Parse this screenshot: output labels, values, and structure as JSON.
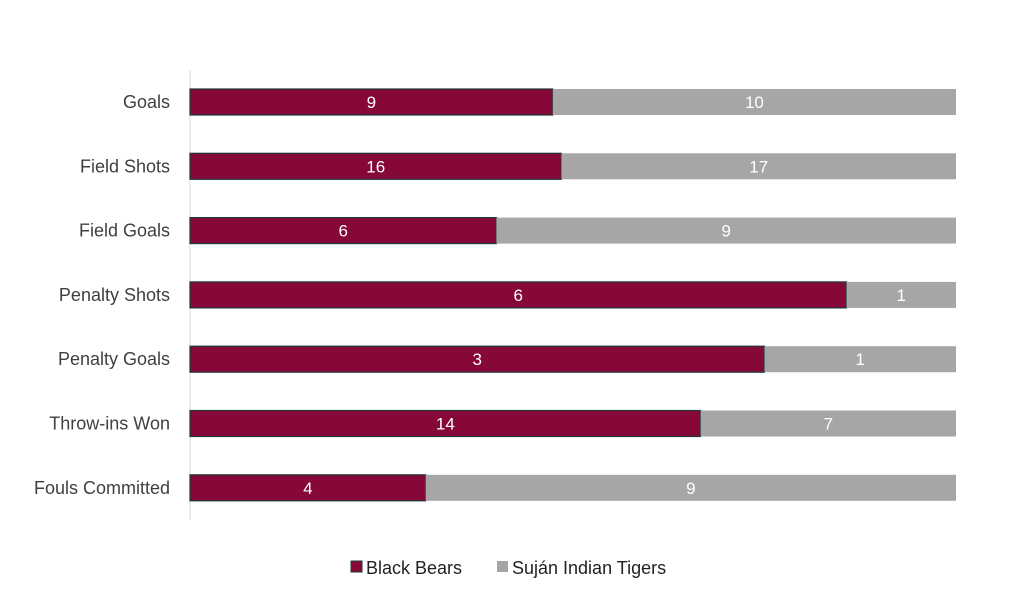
{
  "chart_data": {
    "type": "bar",
    "orientation": "horizontal",
    "stacked": "percent",
    "categories": [
      "Goals",
      "Field Shots",
      "Field Goals",
      "Penalty Shots",
      "Penalty Goals",
      "Throw-ins Won",
      "Fouls Committed"
    ],
    "series": [
      {
        "name": "Black Bears",
        "color": "#850838",
        "values": [
          9,
          16,
          6,
          6,
          3,
          14,
          4
        ]
      },
      {
        "name": "Suján Indian Tigers",
        "color": "#a6a6a6",
        "values": [
          10,
          17,
          9,
          1,
          1,
          7,
          9
        ]
      }
    ],
    "title": "",
    "xlabel": "",
    "ylabel": "",
    "xlim": [
      0,
      100
    ],
    "grid": false,
    "legend_position": "bottom"
  }
}
